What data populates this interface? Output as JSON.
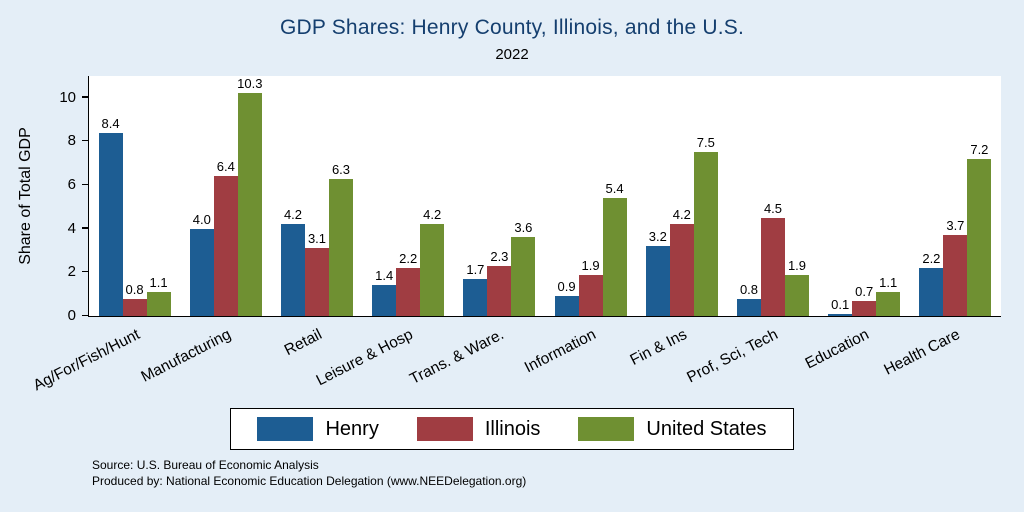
{
  "title": "GDP Shares: Henry County, Illinois, and the U.S.",
  "subtitle": "2022",
  "chart_data": {
    "type": "bar",
    "title": "GDP Shares: Henry County, Illinois, and the U.S.",
    "subtitle": "2022",
    "ylabel": "Share of Total GDP",
    "xlabel": "",
    "ylim": [
      0,
      11
    ],
    "yticks": [
      0,
      2,
      4,
      6,
      8,
      10
    ],
    "grid": false,
    "legend_position": "bottom",
    "categories": [
      "Ag/For/Fish/Hunt",
      "Manufacturing",
      "Retail",
      "Leisure & Hosp",
      "Trans. & Ware.",
      "Information",
      "Fin & Ins",
      "Prof, Sci, Tech",
      "Education",
      "Health Care"
    ],
    "series": [
      {
        "name": "Henry",
        "color": "#1d5d93",
        "values": [
          8.4,
          4.0,
          4.2,
          1.4,
          1.7,
          0.9,
          3.2,
          0.8,
          0.1,
          2.2
        ]
      },
      {
        "name": "Illinois",
        "color": "#a03d42",
        "values": [
          0.8,
          6.4,
          3.1,
          2.2,
          2.3,
          1.9,
          4.2,
          4.5,
          0.7,
          3.7
        ]
      },
      {
        "name": "United States",
        "color": "#6f9032",
        "values": [
          1.1,
          10.3,
          6.3,
          4.2,
          3.6,
          5.4,
          7.5,
          1.9,
          1.1,
          7.2
        ]
      }
    ]
  },
  "footer": {
    "line1": "Source: U.S. Bureau of Economic Analysis",
    "line2": "Produced by: National Economic Education Delegation (www.NEEDelegation.org)"
  },
  "colors": {
    "background": "#e4eef7",
    "title_text": "#153f6f",
    "henry": "#1d5d93",
    "illinois": "#a03d42",
    "united_states": "#6f9032"
  }
}
